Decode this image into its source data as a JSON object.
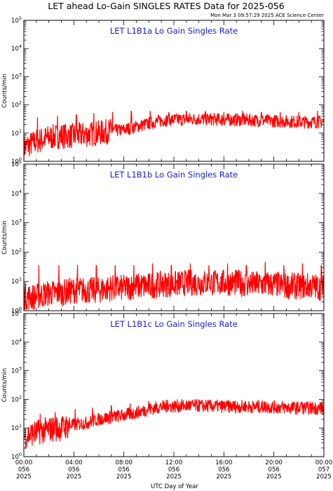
{
  "header": {
    "title": "LET ahead Lo-Gain SINGLES RATES Data for 2025-056",
    "timestamp": "Mon Mar  3 09:57:29 2025 ACE Science Center"
  },
  "colors": {
    "series": "#ff0000",
    "panel_title": "#1a1adc",
    "axes": "#000000"
  },
  "x_axis": {
    "label": "UTC Day of Year",
    "range_hours": [
      0,
      24
    ],
    "ticks": [
      {
        "hour": 0,
        "time": "00:00",
        "doy": "056",
        "year": "2025"
      },
      {
        "hour": 4,
        "time": "04:00",
        "doy": "056",
        "year": "2025"
      },
      {
        "hour": 8,
        "time": "08:00",
        "doy": "056",
        "year": "2025"
      },
      {
        "hour": 12,
        "time": "12:00",
        "doy": "056",
        "year": "2025"
      },
      {
        "hour": 16,
        "time": "16:00",
        "doy": "056",
        "year": "2025"
      },
      {
        "hour": 20,
        "time": "20:00",
        "doy": "056",
        "year": "2025"
      },
      {
        "hour": 24,
        "time": "00:00",
        "doy": "057",
        "year": "2025"
      }
    ]
  },
  "chart_data": [
    {
      "type": "line",
      "title": "LET L1B1a Lo Gain Singles Rate",
      "ylabel": "Counts/min",
      "yscale": "log",
      "ylim": [
        1,
        100000
      ],
      "ytick_exponents": [
        0,
        1,
        2,
        3,
        4,
        5
      ],
      "x_hours": [
        0,
        1,
        2,
        3,
        4,
        5,
        6,
        7,
        8,
        9,
        10,
        11,
        12,
        13,
        14,
        15,
        16,
        17,
        18,
        19,
        20,
        21,
        22,
        23,
        24
      ],
      "values": [
        3,
        5,
        7,
        8,
        8,
        9,
        10,
        12,
        13,
        17,
        22,
        28,
        30,
        31,
        32,
        31,
        30,
        30,
        29,
        28,
        27,
        26,
        25,
        25,
        25
      ],
      "spikes": [
        {
          "hour": 1.1,
          "value": 35
        },
        {
          "hour": 2.7,
          "value": 40
        },
        {
          "hour": 4.2,
          "value": 45
        },
        {
          "hour": 5.6,
          "value": 50
        },
        {
          "hour": 7.1,
          "value": 55
        },
        {
          "hour": 8.6,
          "value": 60
        },
        {
          "hour": 10.1,
          "value": 60
        },
        {
          "hour": 11.6,
          "value": 55
        },
        {
          "hour": 13.0,
          "value": 60
        },
        {
          "hour": 14.5,
          "value": 60
        },
        {
          "hour": 16.0,
          "value": 55
        },
        {
          "hour": 17.5,
          "value": 60
        },
        {
          "hour": 19.0,
          "value": 55
        },
        {
          "hour": 20.5,
          "value": 55
        },
        {
          "hour": 22.0,
          "value": 55
        },
        {
          "hour": 23.5,
          "value": 60
        }
      ]
    },
    {
      "type": "line",
      "title": "LET L1B1b Lo Gain Singles Rate",
      "ylabel": "Counts/min",
      "yscale": "log",
      "ylim": [
        1,
        100000
      ],
      "ytick_exponents": [
        0,
        1,
        2,
        3,
        4,
        5
      ],
      "x_hours": [
        0,
        1,
        2,
        3,
        4,
        5,
        6,
        7,
        8,
        9,
        10,
        11,
        12,
        13,
        14,
        15,
        16,
        17,
        18,
        19,
        20,
        21,
        22,
        23,
        24
      ],
      "values": [
        3,
        3,
        4,
        4,
        5,
        5,
        5,
        6,
        6,
        7,
        7,
        8,
        8,
        9,
        9,
        9,
        9,
        9,
        8,
        8,
        8,
        7,
        7,
        7,
        6
      ],
      "spikes": [
        {
          "hour": 1.2,
          "value": 35
        },
        {
          "hour": 2.8,
          "value": 35
        },
        {
          "hour": 4.3,
          "value": 35
        },
        {
          "hour": 5.8,
          "value": 35
        },
        {
          "hour": 7.3,
          "value": 35
        },
        {
          "hour": 8.8,
          "value": 35
        },
        {
          "hour": 10.3,
          "value": 40
        },
        {
          "hour": 11.8,
          "value": 35
        },
        {
          "hour": 13.3,
          "value": 40
        },
        {
          "hour": 14.8,
          "value": 35
        },
        {
          "hour": 16.3,
          "value": 40
        },
        {
          "hour": 17.8,
          "value": 35
        },
        {
          "hour": 19.3,
          "value": 45
        },
        {
          "hour": 20.8,
          "value": 35
        },
        {
          "hour": 22.3,
          "value": 40
        },
        {
          "hour": 23.8,
          "value": 35
        }
      ]
    },
    {
      "type": "line",
      "title": "LET L1B1c Lo Gain Singles Rate",
      "ylabel": "Counts/min",
      "yscale": "log",
      "ylim": [
        1,
        100000
      ],
      "ytick_exponents": [
        0,
        1,
        2,
        3,
        4,
        5
      ],
      "x_hours": [
        0,
        1,
        2,
        3,
        4,
        5,
        6,
        7,
        8,
        9,
        10,
        11,
        12,
        13,
        14,
        15,
        16,
        17,
        18,
        19,
        20,
        21,
        22,
        23,
        24
      ],
      "values": [
        5,
        7,
        9,
        10,
        13,
        15,
        20,
        24,
        28,
        34,
        45,
        55,
        58,
        60,
        60,
        58,
        57,
        56,
        55,
        55,
        54,
        52,
        50,
        50,
        48
      ],
      "spikes": [
        {
          "hour": 1.3,
          "value": 30
        },
        {
          "hour": 2.5,
          "value": 35
        },
        {
          "hour": 4.1,
          "value": 45
        },
        {
          "hour": 5.5,
          "value": 50
        },
        {
          "hour": 7.0,
          "value": 60
        },
        {
          "hour": 8.5,
          "value": 70
        },
        {
          "hour": 10.0,
          "value": 85
        },
        {
          "hour": 11.5,
          "value": 95
        },
        {
          "hour": 13.2,
          "value": 90
        },
        {
          "hour": 14.7,
          "value": 90
        },
        {
          "hour": 16.2,
          "value": 85
        },
        {
          "hour": 17.7,
          "value": 85
        },
        {
          "hour": 19.2,
          "value": 80
        },
        {
          "hour": 20.7,
          "value": 85
        },
        {
          "hour": 22.2,
          "value": 80
        },
        {
          "hour": 23.7,
          "value": 80
        }
      ]
    }
  ]
}
